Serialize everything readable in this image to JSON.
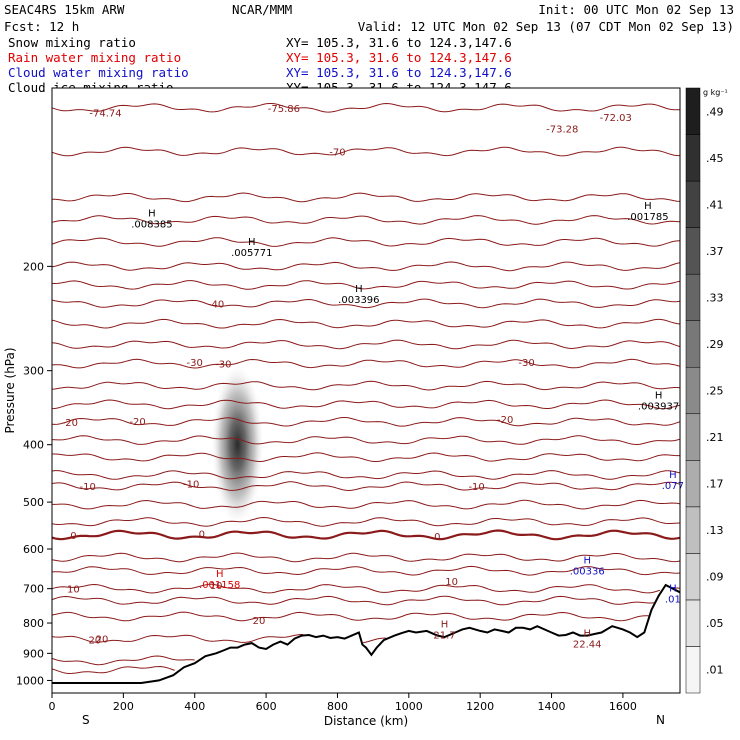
{
  "header": {
    "model": "SEAC4RS 15km ARW",
    "org": "NCAR/MMM",
    "init": "Init: 00 UTC Mon 02 Sep 13",
    "fcst": "Fcst:  12 h",
    "valid": "Valid: 12 UTC Mon 02 Sep 13 (07 CDT Mon 02 Sep 13)"
  },
  "fields": [
    {
      "name": "Snow mixing ratio",
      "xy": "XY= 105.3, 31.6 to 124.3,147.6",
      "color": "#000000"
    },
    {
      "name": "Rain water mixing ratio",
      "xy": "XY= 105.3, 31.6 to 124.3,147.6",
      "color": "#e00000"
    },
    {
      "name": "Cloud water mixing ratio",
      "xy": "XY= 105.3, 31.6 to 124.3,147.6",
      "color": "#1010c8"
    },
    {
      "name": "Cloud ice mixing ratio",
      "xy": "XY= 105.3, 31.6 to 124.3,147.6",
      "color": "#000000"
    }
  ],
  "chart_data": {
    "type": "heatmap",
    "title": "",
    "xlabel": "Distance (km)",
    "ylabel": "Pressure (hPa)",
    "xlim": [
      0,
      1760
    ],
    "ylim": [
      1050,
      100
    ],
    "y_scale": "log",
    "x_ticks": [
      0,
      200,
      400,
      600,
      800,
      1000,
      1200,
      1400,
      1600
    ],
    "y_ticks": [
      200,
      300,
      400,
      500,
      600,
      700,
      800,
      900,
      1000
    ],
    "y_tick_labels": [
      "200",
      "300",
      "400",
      "500",
      "600",
      "700",
      "800",
      "900",
      "1000"
    ],
    "endpoints": {
      "left": "S",
      "right": "N"
    },
    "colorbar": {
      "unit": "g kg⁻¹",
      "levels": [
        0.01,
        0.05,
        0.09,
        0.13,
        0.17,
        0.21,
        0.25,
        0.29,
        0.33,
        0.37,
        0.41,
        0.45,
        0.49
      ],
      "labels": [
        ".01",
        ".05",
        ".09",
        ".13",
        ".17",
        ".21",
        ".25",
        ".29",
        ".33",
        ".37",
        ".41",
        ".45",
        ".49"
      ]
    },
    "snow_core": {
      "x": 520,
      "p": 400,
      "max": 0.4
    },
    "temperature_contours": {
      "color": "#8b1a1a",
      "levels": [
        {
          "p": 108,
          "label": "-75.86",
          "label_x": 650
        },
        {
          "p": 128,
          "label": "-70",
          "label_x": 800
        },
        {
          "p": 153
        },
        {
          "p": 167
        },
        {
          "p": 182
        },
        {
          "p": 200
        },
        {
          "p": 215
        },
        {
          "p": 231,
          "label": "-40",
          "label_x": 460
        },
        {
          "p": 250
        },
        {
          "p": 271
        },
        {
          "p": 292,
          "label": "-30",
          "label_x": 480
        },
        {
          "p": 318
        },
        {
          "p": 342
        },
        {
          "p": 366,
          "label": "-20",
          "label_x": 50
        },
        {
          "p": 393
        },
        {
          "p": 420
        },
        {
          "p": 450
        },
        {
          "p": 470,
          "label": "-10",
          "label_x": 100
        },
        {
          "p": 505
        },
        {
          "p": 540
        },
        {
          "p": 568,
          "label": "0",
          "label_x": 60,
          "bold": true
        },
        {
          "p": 620
        },
        {
          "p": 653
        },
        {
          "p": 700,
          "label": "10",
          "label_x": 60
        },
        {
          "p": 733
        },
        {
          "p": 780
        },
        {
          "p": 850,
          "label": "20",
          "label_x": 140
        },
        {
          "p": 925
        },
        {
          "p": 960
        }
      ],
      "extra_labels": [
        {
          "x": 240,
          "p": 365,
          "text": "-20"
        },
        {
          "x": 1270,
          "p": 362,
          "text": "-20"
        },
        {
          "x": 1330,
          "p": 290,
          "text": "-30"
        },
        {
          "x": 400,
          "p": 290,
          "text": "-30"
        },
        {
          "x": 390,
          "p": 465,
          "text": "-10"
        },
        {
          "x": 1190,
          "p": 470,
          "text": "-10"
        },
        {
          "x": 1080,
          "p": 570,
          "text": "0"
        },
        {
          "x": 420,
          "p": 565,
          "text": "0"
        },
        {
          "x": 460,
          "p": 690,
          "text": "10"
        },
        {
          "x": 1120,
          "p": 680,
          "text": "10"
        },
        {
          "x": 580,
          "p": 790,
          "text": "20"
        },
        {
          "x": 120,
          "p": 853,
          "text": "20"
        },
        {
          "x": 150,
          "p": 110,
          "text": "-74.74"
        },
        {
          "x": 1430,
          "p": 117,
          "text": "-73.28"
        },
        {
          "x": 1580,
          "p": 112,
          "text": "-72.03"
        }
      ]
    },
    "terrain": [
      [
        0,
        1010
      ],
      [
        250,
        1010
      ],
      [
        300,
        1000
      ],
      [
        340,
        980
      ],
      [
        370,
        950
      ],
      [
        400,
        935
      ],
      [
        430,
        910
      ],
      [
        460,
        900
      ],
      [
        480,
        890
      ],
      [
        500,
        880
      ],
      [
        520,
        880
      ],
      [
        540,
        870
      ],
      [
        560,
        865
      ],
      [
        580,
        880
      ],
      [
        600,
        885
      ],
      [
        620,
        870
      ],
      [
        640,
        860
      ],
      [
        660,
        870
      ],
      [
        680,
        850
      ],
      [
        700,
        840
      ],
      [
        720,
        838
      ],
      [
        740,
        845
      ],
      [
        760,
        840
      ],
      [
        780,
        848
      ],
      [
        800,
        845
      ],
      [
        820,
        850
      ],
      [
        840,
        840
      ],
      [
        860,
        830
      ],
      [
        870,
        870
      ],
      [
        880,
        880
      ],
      [
        895,
        905
      ],
      [
        910,
        880
      ],
      [
        930,
        855
      ],
      [
        960,
        840
      ],
      [
        980,
        832
      ],
      [
        1000,
        825
      ],
      [
        1020,
        830
      ],
      [
        1050,
        825
      ],
      [
        1080,
        840
      ],
      [
        1100,
        845
      ],
      [
        1130,
        830
      ],
      [
        1150,
        820
      ],
      [
        1170,
        815
      ],
      [
        1200,
        825
      ],
      [
        1220,
        830
      ],
      [
        1240,
        820
      ],
      [
        1260,
        825
      ],
      [
        1280,
        830
      ],
      [
        1300,
        815
      ],
      [
        1320,
        815
      ],
      [
        1340,
        820
      ],
      [
        1360,
        810
      ],
      [
        1380,
        820
      ],
      [
        1400,
        830
      ],
      [
        1420,
        840
      ],
      [
        1440,
        838
      ],
      [
        1460,
        830
      ],
      [
        1480,
        840
      ],
      [
        1500,
        840
      ],
      [
        1520,
        835
      ],
      [
        1540,
        830
      ],
      [
        1570,
        810
      ],
      [
        1600,
        820
      ],
      [
        1620,
        830
      ],
      [
        1640,
        845
      ],
      [
        1660,
        830
      ],
      [
        1680,
        760
      ],
      [
        1700,
        720
      ],
      [
        1720,
        690
      ],
      [
        1740,
        700
      ],
      [
        1760,
        710
      ]
    ],
    "maxima": [
      {
        "x": 280,
        "p": 170,
        "value": ".008385",
        "color": "#000000"
      },
      {
        "x": 560,
        "p": 190,
        "value": ".005771",
        "color": "#000000"
      },
      {
        "x": 860,
        "p": 228,
        "value": ".003396",
        "color": "#000000"
      },
      {
        "x": 1670,
        "p": 165,
        "value": ".001785",
        "color": "#000000"
      },
      {
        "x": 1700,
        "p": 345,
        "value": ".003937",
        "color": "#000000"
      },
      {
        "x": 1740,
        "p": 470,
        "value": ".077",
        "color": "#1010c8"
      },
      {
        "x": 1500,
        "p": 655,
        "value": ".00336",
        "color": "#1010c8"
      },
      {
        "x": 1740,
        "p": 730,
        "value": ".01",
        "color": "#1010c8"
      },
      {
        "x": 470,
        "p": 690,
        "value": ".001158",
        "color": "#e00000"
      },
      {
        "x": 1100,
        "p": 840,
        "value": "21.7",
        "color": "#8b1a1a"
      },
      {
        "x": 1500,
        "p": 870,
        "value": "22.44",
        "color": "#8b1a1a"
      }
    ]
  }
}
